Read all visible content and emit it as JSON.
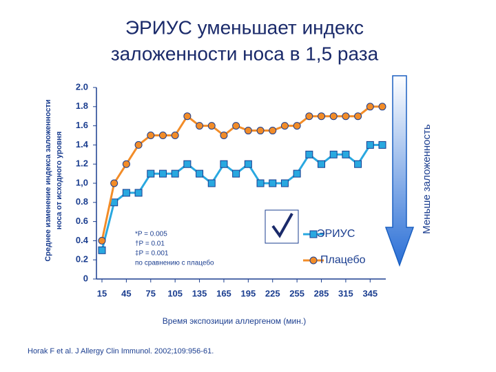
{
  "chart_data": {
    "type": "line",
    "title": [
      "ЭРИУС уменьшает индекс",
      "заложенности носа в 1,5 раза"
    ],
    "y_label": [
      "Среднее изменение индекса заложенности",
      "носа от исходного уровня"
    ],
    "x_label": "Время экспозиции аллергеном (мин.)",
    "side_label": "Меньше заложенность",
    "annotations": [
      "*P = 0.005",
      "†P = 0.01",
      "‡P = 0.001",
      "по сравнению с плацебо"
    ],
    "source": "Horak F et al. J Allergy Clin Immunol. 2002;109:956-61.",
    "x": [
      15,
      30,
      45,
      60,
      75,
      90,
      105,
      120,
      135,
      150,
      165,
      180,
      195,
      210,
      225,
      240,
      255,
      270,
      285,
      300,
      315,
      330,
      345,
      360
    ],
    "xlim": [
      15,
      360
    ],
    "xticks": [
      15,
      45,
      75,
      105,
      135,
      165,
      195,
      225,
      255,
      285,
      315,
      345
    ],
    "ylim": [
      0,
      2
    ],
    "yticks": [
      0,
      {
        "value": 0.2,
        "label": "0.2"
      },
      {
        "value": 0.4,
        "label": "0.4"
      },
      {
        "value": 0.6,
        "label": "0.6"
      },
      {
        "value": 0.8,
        "label": "0.8"
      },
      {
        "value": 1,
        "label": "1,0"
      },
      {
        "value": 1.2,
        "label": "1.2"
      },
      {
        "value": 1.4,
        "label": "1.4"
      },
      {
        "value": 1.6,
        "label": "1.6"
      },
      {
        "value": 1.8,
        "label": "1.8"
      },
      {
        "value": 2,
        "label": "2.0"
      }
    ],
    "series": [
      {
        "name": "ЭРИУС",
        "color": "#29a8e0",
        "marker": "square",
        "values": [
          0.3,
          0.8,
          0.9,
          0.9,
          1.1,
          1.1,
          1.1,
          1.2,
          1.1,
          1.0,
          1.2,
          1.1,
          1.2,
          1.0,
          1.0,
          1.0,
          1.1,
          1.3,
          1.2,
          1.3,
          1.3,
          1.2,
          1.4,
          1.4
        ]
      },
      {
        "name": "Плацебо",
        "color": "#f28c28",
        "marker": "circle",
        "values": [
          0.4,
          1.0,
          1.2,
          1.4,
          1.5,
          1.5,
          1.5,
          1.7,
          1.6,
          1.6,
          1.5,
          1.6,
          1.55,
          1.55,
          1.55,
          1.6,
          1.6,
          1.7,
          1.7,
          1.7,
          1.7,
          1.7,
          1.8,
          1.8
        ]
      }
    ]
  }
}
